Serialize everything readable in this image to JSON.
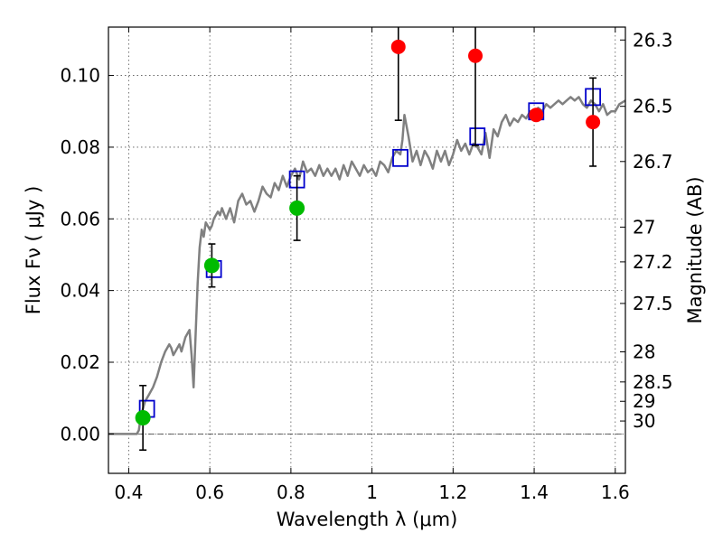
{
  "chart_data": {
    "type": "scatter",
    "xlabel": "Wavelength  λ (μm)",
    "ylabel": "Flux  Fν  ( μJy )",
    "ylabel_right": "Magnitude (AB)",
    "xlim": [
      0.35,
      1.625
    ],
    "ylim": [
      -0.011,
      0.1135
    ],
    "grid": true,
    "x_ticks": [
      0.4,
      0.6,
      0.8,
      1.0,
      1.2,
      1.4,
      1.6
    ],
    "x_tick_labels": [
      "0.4",
      "0.6",
      "0.8",
      "1",
      "1.2",
      "1.4",
      "1.6"
    ],
    "y_ticks": [
      0.0,
      0.02,
      0.04,
      0.06,
      0.08,
      0.1
    ],
    "y_tick_labels": [
      "0.00",
      "0.02",
      "0.04",
      "0.06",
      "0.08",
      "0.10"
    ],
    "right_ticks": [
      {
        "label": "26.3",
        "flux": 0.1099
      },
      {
        "label": "26.5",
        "flux": 0.0914
      },
      {
        "label": "26.7",
        "flux": 0.076
      },
      {
        "label": "27",
        "flux": 0.0577
      },
      {
        "label": "27.2",
        "flux": 0.048
      },
      {
        "label": "27.5",
        "flux": 0.0364
      },
      {
        "label": "28",
        "flux": 0.0229
      },
      {
        "label": "28.5",
        "flux": 0.0145
      },
      {
        "label": "29",
        "flux": 0.0091
      },
      {
        "label": "30",
        "flux": 0.0036
      }
    ],
    "model_spectrum": {
      "color": "#808080",
      "x": [
        0.35,
        0.42,
        0.425,
        0.43,
        0.44,
        0.45,
        0.46,
        0.47,
        0.48,
        0.49,
        0.5,
        0.505,
        0.51,
        0.52,
        0.525,
        0.53,
        0.54,
        0.55,
        0.555,
        0.56,
        0.565,
        0.57,
        0.575,
        0.58,
        0.585,
        0.59,
        0.6,
        0.605,
        0.61,
        0.62,
        0.625,
        0.63,
        0.64,
        0.65,
        0.66,
        0.67,
        0.68,
        0.69,
        0.7,
        0.71,
        0.72,
        0.73,
        0.74,
        0.75,
        0.76,
        0.77,
        0.78,
        0.79,
        0.8,
        0.81,
        0.82,
        0.83,
        0.84,
        0.85,
        0.86,
        0.87,
        0.88,
        0.89,
        0.9,
        0.91,
        0.92,
        0.93,
        0.94,
        0.95,
        0.96,
        0.97,
        0.98,
        0.99,
        1.0,
        1.01,
        1.02,
        1.03,
        1.04,
        1.05,
        1.06,
        1.07,
        1.075,
        1.08,
        1.09,
        1.1,
        1.11,
        1.12,
        1.13,
        1.14,
        1.15,
        1.16,
        1.17,
        1.18,
        1.19,
        1.2,
        1.21,
        1.22,
        1.23,
        1.24,
        1.25,
        1.26,
        1.27,
        1.28,
        1.29,
        1.3,
        1.31,
        1.32,
        1.33,
        1.34,
        1.35,
        1.36,
        1.37,
        1.38,
        1.39,
        1.4,
        1.41,
        1.42,
        1.43,
        1.44,
        1.45,
        1.46,
        1.47,
        1.48,
        1.49,
        1.5,
        1.51,
        1.52,
        1.53,
        1.54,
        1.55,
        1.56,
        1.57,
        1.58,
        1.59,
        1.6,
        1.61,
        1.625
      ],
      "y": [
        0.0,
        0.0,
        0.001,
        0.005,
        0.009,
        0.011,
        0.013,
        0.016,
        0.02,
        0.023,
        0.025,
        0.024,
        0.022,
        0.024,
        0.025,
        0.023,
        0.027,
        0.029,
        0.022,
        0.013,
        0.028,
        0.042,
        0.052,
        0.057,
        0.055,
        0.059,
        0.057,
        0.058,
        0.06,
        0.062,
        0.061,
        0.063,
        0.06,
        0.063,
        0.059,
        0.065,
        0.067,
        0.064,
        0.065,
        0.062,
        0.065,
        0.069,
        0.067,
        0.066,
        0.07,
        0.068,
        0.072,
        0.069,
        0.072,
        0.074,
        0.071,
        0.076,
        0.073,
        0.074,
        0.072,
        0.075,
        0.072,
        0.074,
        0.072,
        0.074,
        0.071,
        0.075,
        0.072,
        0.076,
        0.074,
        0.072,
        0.075,
        0.073,
        0.074,
        0.072,
        0.076,
        0.075,
        0.073,
        0.077,
        0.079,
        0.078,
        0.082,
        0.089,
        0.083,
        0.076,
        0.079,
        0.075,
        0.079,
        0.077,
        0.074,
        0.079,
        0.076,
        0.079,
        0.075,
        0.078,
        0.082,
        0.079,
        0.081,
        0.078,
        0.081,
        0.08,
        0.078,
        0.084,
        0.077,
        0.085,
        0.083,
        0.087,
        0.089,
        0.086,
        0.088,
        0.087,
        0.089,
        0.088,
        0.09,
        0.089,
        0.091,
        0.09,
        0.092,
        0.091,
        0.092,
        0.093,
        0.092,
        0.093,
        0.094,
        0.093,
        0.094,
        0.092,
        0.091,
        0.093,
        0.092,
        0.09,
        0.092,
        0.089,
        0.09,
        0.09,
        0.092,
        0.093
      ]
    },
    "green_points": [
      {
        "x": 0.435,
        "y": 0.0045,
        "err": 0.009
      },
      {
        "x": 0.605,
        "y": 0.047,
        "err": 0.006
      },
      {
        "x": 0.815,
        "y": 0.063,
        "err": 0.009
      }
    ],
    "red_points": [
      {
        "x": 1.065,
        "y": 0.108,
        "err": 0.0205
      },
      {
        "x": 1.255,
        "y": 0.1055,
        "err": 0.025
      },
      {
        "x": 1.405,
        "y": 0.089,
        "err": 0.0
      },
      {
        "x": 1.545,
        "y": 0.087,
        "err": 0.0123
      }
    ],
    "model_squares": [
      {
        "x": 0.445,
        "y": 0.007
      },
      {
        "x": 0.61,
        "y": 0.046
      },
      {
        "x": 0.815,
        "y": 0.071
      },
      {
        "x": 1.07,
        "y": 0.077
      },
      {
        "x": 1.26,
        "y": 0.083
      },
      {
        "x": 1.405,
        "y": 0.09
      },
      {
        "x": 1.545,
        "y": 0.094
      }
    ],
    "colors": {
      "spectrum": "#808080",
      "green": "#00bb00",
      "red": "#ff0000",
      "square": "#0000cc",
      "grid": "#555555",
      "errorbar": "#000000"
    }
  }
}
